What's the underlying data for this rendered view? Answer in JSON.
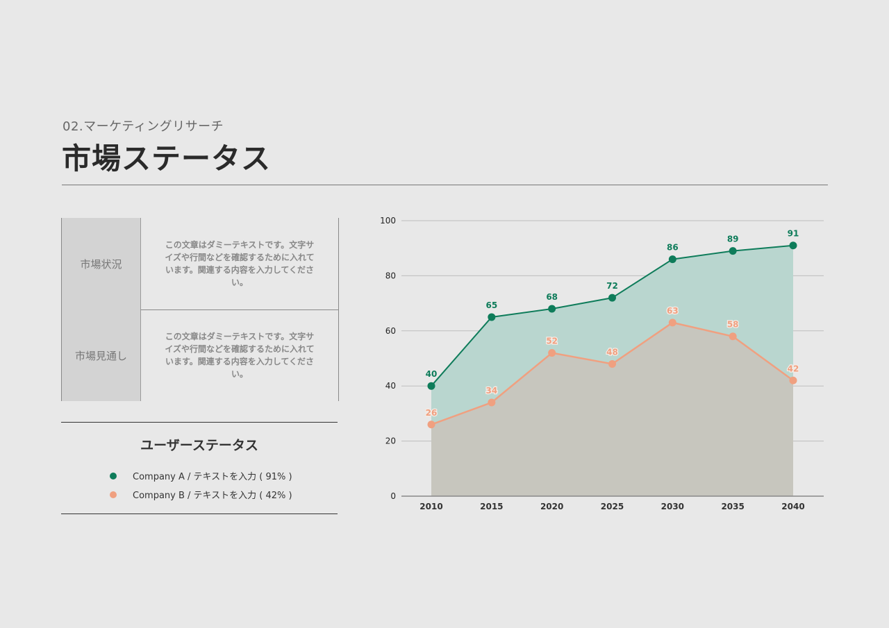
{
  "header": {
    "subtitle": "02.マーケティングリサーチ",
    "title": "市場ステータス"
  },
  "status_table": {
    "rows": [
      {
        "label": "市場状況",
        "text": "この文章はダミーテキストです。文字サイズや行間などを確認するために入れています。関連する内容を入力してください。"
      },
      {
        "label": "市場見通し",
        "text": "この文章はダミーテキストです。文字サイズや行間などを確認するために入れています。関連する内容を入力してください。"
      }
    ]
  },
  "legend": {
    "title": "ユーザーステータス",
    "items": [
      {
        "label": "Company A / テキストを入力 ( 91% )",
        "color": "#0e7c5a"
      },
      {
        "label": "Company B / テキストを入力 ( 42% )",
        "color": "#f0a080"
      }
    ]
  },
  "chart_data": {
    "type": "area",
    "categories": [
      "2010",
      "2015",
      "2020",
      "2025",
      "2030",
      "2035",
      "2040"
    ],
    "series": [
      {
        "values": [
          40,
          65,
          68,
          72,
          86,
          89,
          91
        ],
        "color": "#0e7c5a",
        "fill": "#b9d6cf"
      },
      {
        "values": [
          26,
          34,
          52,
          48,
          63,
          58,
          42
        ],
        "color": "#f0a080",
        "fill": "#c7c5bd"
      }
    ],
    "ylim": [
      0,
      100
    ],
    "yticks": [
      0,
      20,
      40,
      60,
      80,
      100
    ],
    "grid": true,
    "data_labels": true
  }
}
